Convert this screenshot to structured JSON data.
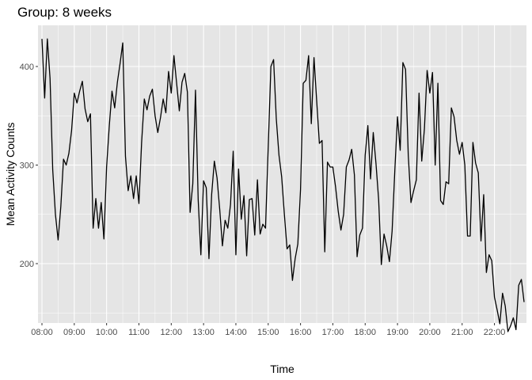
{
  "chart_data": {
    "type": "line",
    "title": "Group: 8 weeks",
    "xlabel": "Time",
    "ylabel": "Mean Activity Counts",
    "x_start": "08:00",
    "x_step_minutes": 5,
    "x_ticks": [
      "08:00",
      "09:00",
      "10:00",
      "11:00",
      "12:00",
      "13:00",
      "14:00",
      "15:00",
      "16:00",
      "17:00",
      "18:00",
      "19:00",
      "20:00",
      "21:00",
      "22:00"
    ],
    "y_ticks": [
      200,
      300,
      400
    ],
    "ylim": [
      130,
      435
    ],
    "grid": true,
    "background": "#e5e5e5",
    "grid_color": "#ffffff",
    "line_color": "#000000",
    "series": [
      {
        "values": [
          428,
          368,
          428,
          388,
          295,
          250,
          224,
          258,
          306,
          300,
          312,
          335,
          373,
          363,
          375,
          385,
          357,
          344,
          352,
          236,
          266,
          236,
          262,
          225,
          298,
          340,
          375,
          358,
          384,
          403,
          424,
          309,
          274,
          289,
          266,
          289,
          261,
          323,
          367,
          356,
          370,
          377,
          350,
          333,
          348,
          367,
          353,
          395,
          373,
          411,
          383,
          355,
          384,
          393,
          374,
          252,
          281,
          376,
          265,
          209,
          284,
          277,
          205,
          270,
          304,
          287,
          255,
          218,
          244,
          236,
          260,
          314,
          209,
          296,
          245,
          269,
          208,
          265,
          266,
          229,
          285,
          230,
          240,
          236,
          318,
          400,
          407,
          347,
          310,
          288,
          250,
          215,
          219,
          183,
          205,
          220,
          275,
          383,
          386,
          411,
          342,
          409,
          365,
          322,
          325,
          212,
          303,
          298,
          298,
          278,
          253,
          234,
          250,
          298,
          305,
          316,
          290,
          207,
          229,
          236,
          310,
          340,
          286,
          333,
          302,
          265,
          199,
          230,
          218,
          202,
          233,
          294,
          349,
          315,
          404,
          397,
          310,
          262,
          274,
          285,
          373,
          304,
          337,
          396,
          373,
          394,
          300,
          383,
          264,
          260,
          283,
          281,
          358,
          349,
          325,
          311,
          323,
          300,
          228,
          228,
          323,
          302,
          292,
          223,
          270,
          191,
          209,
          203,
          166,
          153,
          139,
          170,
          157,
          131,
          137,
          145,
          133,
          178,
          184,
          161
        ]
      }
    ]
  }
}
